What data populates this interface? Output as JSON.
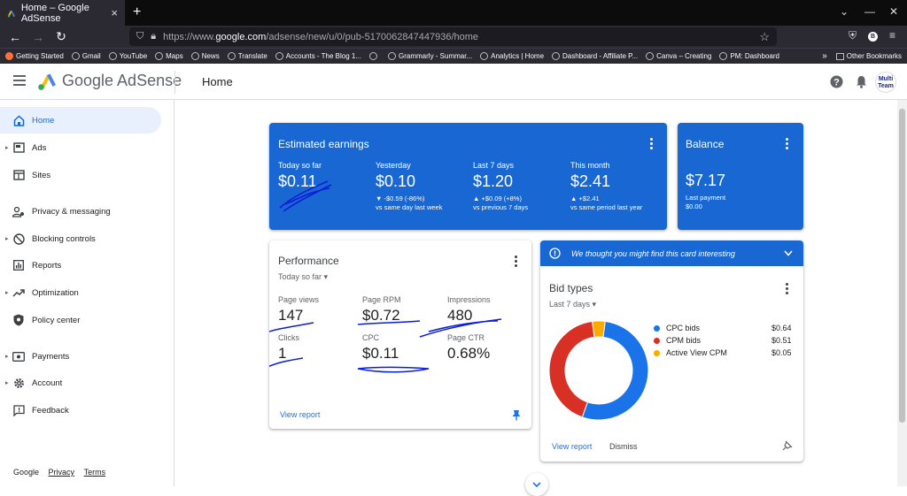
{
  "browser": {
    "tab_title": "Home – Google AdSense",
    "tab_close": "×",
    "new_tab": "+",
    "url_prefix": "https://www.",
    "url_domain": "google.com",
    "url_path": "/adsense/new/u/0/pub-5170062847447936/home",
    "bookmarks": [
      "Getting Started",
      "Gmail",
      "YouTube",
      "Maps",
      "News",
      "Translate",
      "Accounts - The Blog 1...",
      "",
      "Grammarly - Summar...",
      "Analytics | Home",
      "Dashboard - Affiliate P...",
      "Canva – Creating",
      "PM: Dashboard"
    ],
    "other_bookmarks": "Other Bookmarks",
    "profile_letter": "B"
  },
  "header": {
    "product_name": "Google AdSense",
    "page_title": "Home",
    "avatar_text": "Multi Team"
  },
  "sidebar": {
    "items": [
      {
        "label": "Home",
        "icon": "home-icon"
      },
      {
        "label": "Ads",
        "icon": "ads-icon"
      },
      {
        "label": "Sites",
        "icon": "sites-icon"
      },
      {
        "label": "Privacy & messaging",
        "icon": "privacy-icon"
      },
      {
        "label": "Blocking controls",
        "icon": "block-icon"
      },
      {
        "label": "Reports",
        "icon": "reports-icon"
      },
      {
        "label": "Optimization",
        "icon": "optimization-icon"
      },
      {
        "label": "Policy center",
        "icon": "policy-icon"
      },
      {
        "label": "Payments",
        "icon": "payments-icon"
      },
      {
        "label": "Account",
        "icon": "account-icon"
      },
      {
        "label": "Feedback",
        "icon": "feedback-icon"
      }
    ],
    "footer": {
      "google": "Google",
      "privacy": "Privacy",
      "terms": "Terms"
    }
  },
  "earnings": {
    "title": "Estimated earnings",
    "metrics": [
      {
        "label": "Today so far",
        "value": "$0.11",
        "sub1": "",
        "sub2": ""
      },
      {
        "label": "Yesterday",
        "value": "$0.10",
        "sub1": "▼ -$0.59 (-86%)",
        "sub2": "vs same day last week"
      },
      {
        "label": "Last 7 days",
        "value": "$1.20",
        "sub1": "▲ +$0.09 (+8%)",
        "sub2": "vs previous 7 days"
      },
      {
        "label": "This month",
        "value": "$2.41",
        "sub1": "▲ +$2.41",
        "sub2": "vs same period last year"
      }
    ]
  },
  "balance": {
    "title": "Balance",
    "value": "$7.17",
    "last_payment_label": "Last payment",
    "last_payment_value": "$0.00"
  },
  "performance": {
    "title": "Performance",
    "range": "Today so far",
    "metrics": [
      {
        "label": "Page views",
        "value": "147"
      },
      {
        "label": "Page RPM",
        "value": "$0.72"
      },
      {
        "label": "Impressions",
        "value": "480"
      },
      {
        "label": "Clicks",
        "value": "1"
      },
      {
        "label": "CPC",
        "value": "$0.11"
      },
      {
        "label": "Page CTR",
        "value": "0.68%"
      }
    ],
    "view_report": "View report"
  },
  "bid_types": {
    "banner": "We thought you might find this card interesting",
    "title": "Bid types",
    "range": "Last 7 days",
    "view_report": "View report",
    "dismiss": "Dismiss",
    "colors": {
      "cpc": "#1a73e8",
      "cpm": "#d93025",
      "active_view": "#f9ab00"
    }
  },
  "chart_data": {
    "type": "pie",
    "categories": [
      "CPC bids",
      "CPM bids",
      "Active View CPM"
    ],
    "values": [
      0.64,
      0.51,
      0.05
    ],
    "value_labels": [
      "$0.64",
      "$0.51",
      "$0.05"
    ]
  }
}
